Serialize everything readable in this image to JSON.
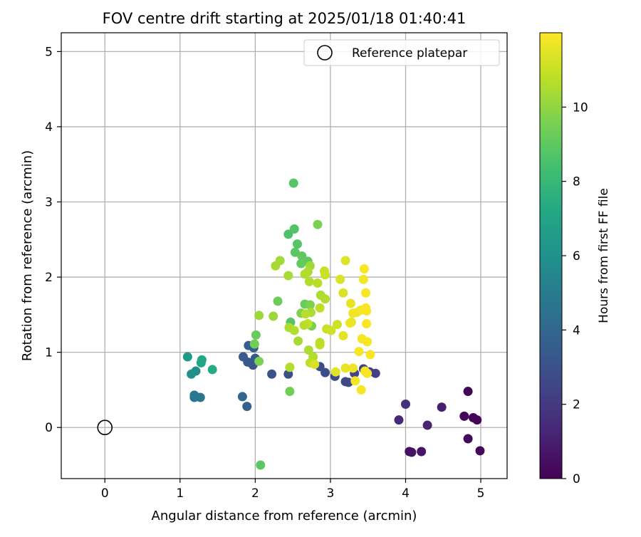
{
  "chart_data": {
    "type": "scatter",
    "title": "FOV centre drift starting at 2025/01/18 01:40:41",
    "xlabel": "Angular distance from reference (arcmin)",
    "ylabel": "Rotation from reference (arcmin)",
    "xlim": [
      -0.58,
      5.35
    ],
    "ylim": [
      -0.68,
      5.25
    ],
    "xticks": [
      0,
      1,
      2,
      3,
      4,
      5
    ],
    "yticks": [
      0,
      1,
      2,
      3,
      4,
      5
    ],
    "grid": true,
    "legend": {
      "position": "top-right",
      "label": "Reference platepar"
    },
    "reference": {
      "x": 0,
      "y": 0
    },
    "colorbar": {
      "label": "Hours from first FF file",
      "colormap": "viridis",
      "range": [
        0,
        12
      ],
      "ticks": [
        0,
        2,
        4,
        6,
        8,
        10
      ]
    },
    "series": [
      {
        "colormap": "viridis",
        "points": [
          [
            4.83,
            0.48,
            0.1
          ],
          [
            4.9,
            0.13,
            0.1
          ],
          [
            4.95,
            0.1,
            0.1
          ],
          [
            4.78,
            0.15,
            0.2
          ],
          [
            4.83,
            -0.15,
            0.2
          ],
          [
            4.99,
            -0.31,
            0.2
          ],
          [
            4.05,
            -0.32,
            0.5
          ],
          [
            4.08,
            -0.33,
            0.6
          ],
          [
            4.21,
            -0.32,
            0.7
          ],
          [
            4.48,
            0.27,
            1.0
          ],
          [
            4.29,
            0.03,
            1.2
          ],
          [
            3.91,
            0.1,
            1.4
          ],
          [
            4.0,
            0.31,
            1.7
          ],
          [
            3.6,
            0.72,
            2.2
          ],
          [
            3.52,
            0.74,
            2.3
          ],
          [
            3.44,
            0.78,
            2.4
          ],
          [
            3.32,
            0.72,
            2.5
          ],
          [
            3.2,
            0.61,
            2.6
          ],
          [
            3.24,
            0.6,
            2.6
          ],
          [
            3.06,
            0.68,
            2.7
          ],
          [
            2.93,
            0.73,
            2.8
          ],
          [
            2.86,
            0.81,
            2.8
          ],
          [
            2.44,
            0.71,
            2.9
          ],
          [
            2.22,
            0.71,
            3.0
          ],
          [
            1.97,
            0.83,
            3.2
          ],
          [
            1.9,
            0.87,
            3.3
          ],
          [
            2.0,
            0.92,
            3.3
          ],
          [
            1.84,
            0.94,
            3.4
          ],
          [
            1.91,
            1.09,
            3.5
          ],
          [
            1.98,
            1.06,
            3.5
          ],
          [
            1.89,
            0.28,
            3.8
          ],
          [
            1.83,
            0.41,
            3.9
          ],
          [
            1.19,
            0.4,
            4.6
          ],
          [
            1.27,
            0.4,
            4.7
          ],
          [
            1.19,
            0.43,
            4.8
          ],
          [
            1.21,
            0.75,
            5.8
          ],
          [
            1.15,
            0.71,
            6.0
          ],
          [
            1.1,
            0.94,
            6.5
          ],
          [
            1.28,
            0.86,
            7.0
          ],
          [
            1.29,
            0.9,
            7.1
          ],
          [
            1.43,
            0.77,
            7.3
          ],
          [
            2.51,
            3.25,
            8.8
          ],
          [
            2.52,
            2.64,
            8.7
          ],
          [
            2.44,
            2.57,
            8.6
          ],
          [
            2.56,
            2.44,
            8.8
          ],
          [
            2.53,
            2.33,
            8.9
          ],
          [
            2.62,
            2.28,
            9.0
          ],
          [
            2.7,
            2.21,
            9.0
          ],
          [
            2.61,
            2.18,
            9.1
          ],
          [
            2.83,
            2.7,
            9.6
          ],
          [
            2.66,
            1.64,
            9.2
          ],
          [
            2.47,
            1.4,
            8.8
          ],
          [
            2.3,
            1.68,
            9.3
          ],
          [
            2.75,
            1.35,
            9.5
          ],
          [
            2.73,
            1.63,
            9.6
          ],
          [
            2.61,
            1.52,
            9.7
          ],
          [
            2.01,
            1.23,
            9.2
          ],
          [
            1.99,
            1.11,
            9.4
          ],
          [
            2.05,
            0.88,
            9.6
          ],
          [
            2.46,
            0.48,
            9.4
          ],
          [
            2.07,
            -0.5,
            8.9
          ],
          [
            2.05,
            1.49,
            10.2
          ],
          [
            2.24,
            1.48,
            10.2
          ],
          [
            2.33,
            2.22,
            10.3
          ],
          [
            2.27,
            2.15,
            10.4
          ],
          [
            2.44,
            2.02,
            10.4
          ],
          [
            2.73,
            2.15,
            10.3
          ],
          [
            2.7,
            2.07,
            10.5
          ],
          [
            2.66,
            2.04,
            10.6
          ],
          [
            2.72,
            1.94,
            10.6
          ],
          [
            2.83,
            1.92,
            10.7
          ],
          [
            2.87,
            1.76,
            10.5
          ],
          [
            2.93,
            1.71,
            10.6
          ],
          [
            2.86,
            1.59,
            10.8
          ],
          [
            2.74,
            1.53,
            10.5
          ],
          [
            2.67,
            1.51,
            10.7
          ],
          [
            2.7,
            1.38,
            10.9
          ],
          [
            2.65,
            1.36,
            10.7
          ],
          [
            2.45,
            1.33,
            10.5
          ],
          [
            2.52,
            1.29,
            10.6
          ],
          [
            2.57,
            1.15,
            10.4
          ],
          [
            2.71,
            1.03,
            10.5
          ],
          [
            2.77,
            0.94,
            10.6
          ],
          [
            2.86,
            1.13,
            10.7
          ],
          [
            2.86,
            1.1,
            10.8
          ],
          [
            2.73,
            0.86,
            10.8
          ],
          [
            2.46,
            0.8,
            10.6
          ],
          [
            2.92,
            2.08,
            11.0
          ],
          [
            2.93,
            2.03,
            11.0
          ],
          [
            2.95,
            1.31,
            11.0
          ],
          [
            3.01,
            1.29,
            11.1
          ],
          [
            3.09,
            1.37,
            11.1
          ],
          [
            3.13,
            1.97,
            11.3
          ],
          [
            3.17,
            1.79,
            11.3
          ],
          [
            3.2,
            2.22,
            11.4
          ],
          [
            3.17,
            1.22,
            11.5
          ],
          [
            3.27,
            1.65,
            11.6
          ],
          [
            3.28,
            1.4,
            11.6
          ],
          [
            3.3,
            1.52,
            11.7
          ],
          [
            3.26,
            1.39,
            11.7
          ],
          [
            3.35,
            1.53,
            11.8
          ],
          [
            3.4,
            1.56,
            11.8
          ],
          [
            3.45,
            2.11,
            11.9
          ],
          [
            3.44,
            1.97,
            11.8
          ],
          [
            3.47,
            1.79,
            11.9
          ],
          [
            3.47,
            1.59,
            11.9
          ],
          [
            3.48,
            1.55,
            11.9
          ],
          [
            3.48,
            1.38,
            11.9
          ],
          [
            3.42,
            1.18,
            11.8
          ],
          [
            3.49,
            1.14,
            11.9
          ],
          [
            3.38,
            1.01,
            11.9
          ],
          [
            3.53,
            0.97,
            11.9
          ],
          [
            3.46,
            0.75,
            11.9
          ],
          [
            3.49,
            0.72,
            11.9
          ],
          [
            3.41,
            0.5,
            11.9
          ],
          [
            3.33,
            0.62,
            11.8
          ],
          [
            3.3,
            0.79,
            11.7
          ],
          [
            3.2,
            0.79,
            11.6
          ],
          [
            3.07,
            0.74,
            11.5
          ],
          [
            2.79,
            0.84,
            11.3
          ]
        ]
      }
    ]
  }
}
